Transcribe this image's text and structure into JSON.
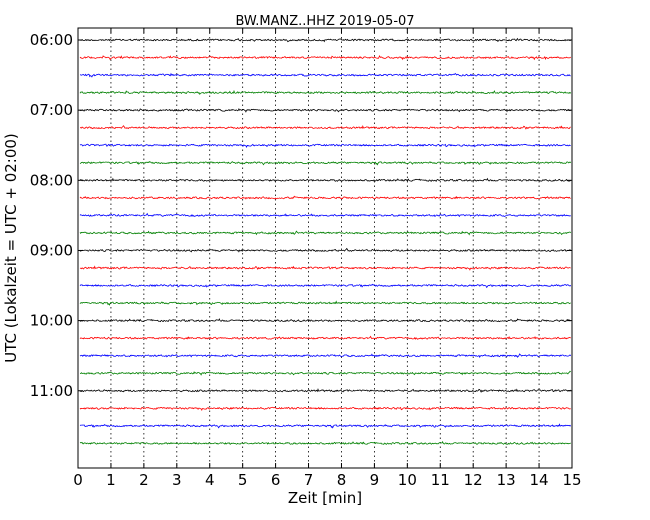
{
  "chart_data": {
    "type": "line",
    "title": "BW.MANZ..HHZ 2019-05-07",
    "xlabel": "Zeit  [min]",
    "ylabel": "UTC (Lokalzeit = UTC + 02:00)",
    "xlim": [
      0,
      15
    ],
    "x_ticks": [
      "0",
      "1",
      "2",
      "3",
      "4",
      "5",
      "6",
      "7",
      "8",
      "9",
      "10",
      "11",
      "12",
      "13",
      "14",
      "15"
    ],
    "y_ticks": [
      "06:00",
      "07:00",
      "08:00",
      "09:00",
      "10:00",
      "11:00"
    ],
    "y_tick_hours": [
      6,
      7,
      8,
      9,
      10,
      11
    ],
    "y_range_hours": [
      6.0,
      11.93
    ],
    "row_interval_minutes": 15,
    "first_row_hour": 6.0,
    "row_count": 24,
    "grid": "vertical dotted",
    "trace_colors": [
      "#000000",
      "#ff0000",
      "#0000ff",
      "#008000"
    ]
  }
}
